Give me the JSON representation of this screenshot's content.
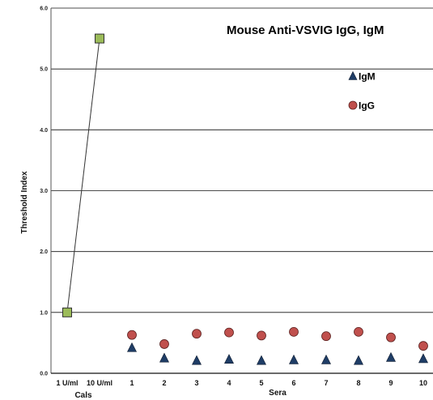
{
  "chart_data": {
    "type": "scatter",
    "title": "Mouse Anti-VSVIG IgG, IgM",
    "ylabel": "Threshold Index",
    "ylim": [
      0,
      6
    ],
    "yticks": [
      "0.0",
      "1.0",
      "2.0",
      "3.0",
      "4.0",
      "5.0",
      "6.0"
    ],
    "grid": true,
    "legend_position": "top-right",
    "categories": [
      "1 U/ml",
      "10 U/ml",
      "1",
      "2",
      "3",
      "4",
      "5",
      "6",
      "7",
      "8",
      "9",
      "10"
    ],
    "groups": [
      {
        "label": "Cals",
        "categories": [
          "1 U/ml",
          "10 U/ml"
        ]
      },
      {
        "label": "Sera",
        "categories": [
          "1",
          "2",
          "3",
          "4",
          "5",
          "6",
          "7",
          "8",
          "9",
          "10"
        ]
      }
    ],
    "calibrators": {
      "categories": [
        "1 U/ml",
        "10 U/ml"
      ],
      "values": [
        1.0,
        5.5
      ],
      "color": "#9bbb59",
      "marker": "square",
      "connected": true
    },
    "series": [
      {
        "name": "IgM",
        "marker": "triangle",
        "color": "#1f3d66",
        "categories": [
          "1",
          "2",
          "3",
          "4",
          "5",
          "6",
          "7",
          "8",
          "9",
          "10"
        ],
        "values": [
          0.42,
          0.25,
          0.21,
          0.23,
          0.21,
          0.22,
          0.22,
          0.21,
          0.26,
          0.24
        ]
      },
      {
        "name": "IgG",
        "marker": "circle",
        "color": "#c0504d",
        "categories": [
          "1",
          "2",
          "3",
          "4",
          "5",
          "6",
          "7",
          "8",
          "9",
          "10"
        ],
        "values": [
          0.63,
          0.48,
          0.65,
          0.67,
          0.62,
          0.68,
          0.61,
          0.68,
          0.59,
          0.45
        ]
      }
    ]
  }
}
